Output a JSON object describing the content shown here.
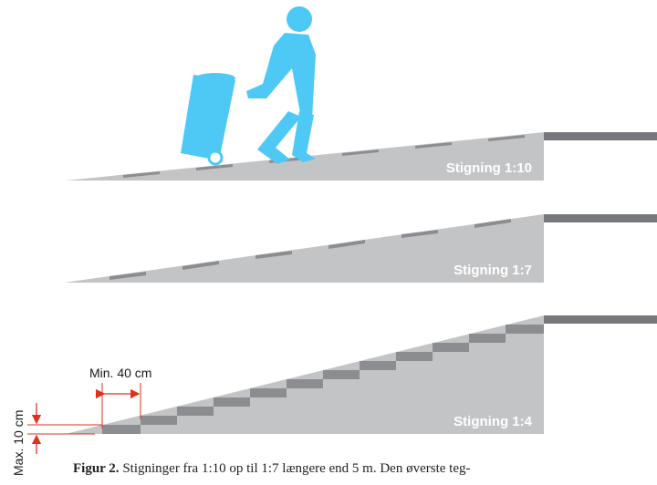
{
  "ramps": [
    {
      "label": "Stigning 1:10"
    },
    {
      "label": "Stigning 1:7"
    },
    {
      "label": "Stigning 1:4"
    }
  ],
  "dimensions": {
    "min_length": "Min. 40 cm",
    "max_height": "Max. 10 cm"
  },
  "caption": {
    "figure": "Figur 2.",
    "text": "Stigninger fra 1:10 op til 1:7 længere end 5 m. Den øverste teg-"
  },
  "colors": {
    "ramp_fill": "#c3c4c6",
    "tread_dark": "#8c8d90",
    "landing": "#77787b",
    "figure": "#4ec9f5",
    "dimension": "#e0301e"
  },
  "icons": [
    "person-pushing-bin-icon"
  ]
}
